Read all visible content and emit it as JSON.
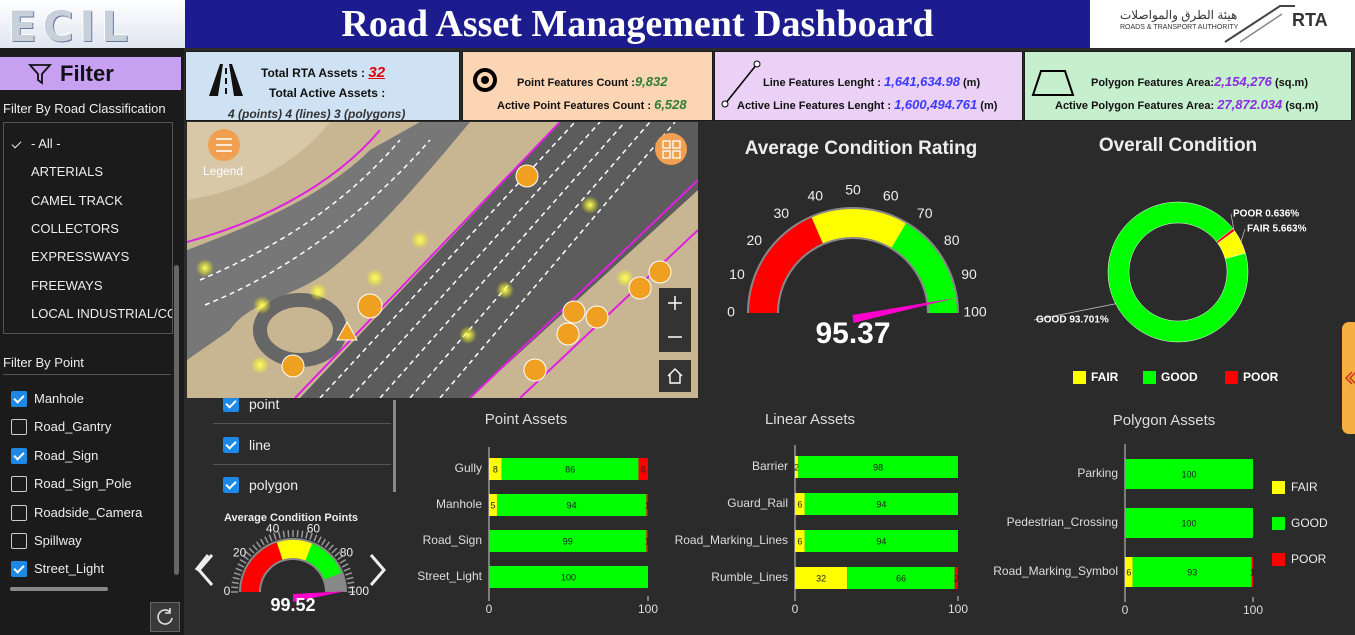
{
  "header": {
    "logo": "ECIL",
    "title": "Road Asset Management Dashboard",
    "authority_arabic": "هيئة الطرق والمواصلات",
    "authority_english": "ROADS & TRANSPORT AUTHORITY",
    "authority_short": "RTA"
  },
  "kpis": [
    {
      "label": "Total RTA Assets :",
      "value": "32",
      "label_2": "Total Active Assets :",
      "value_2": "4 (points) 4 (lines) 3 (polygons)"
    },
    {
      "label": "Point Features Count :",
      "value": "9,832",
      "label_2": "Active Point Features Count :",
      "value_2": "6,528"
    },
    {
      "label": "Line Features Lenght :",
      "value": "1,641,634.98",
      "unit": "(m)",
      "label_2": "Active Line Features Lenght :",
      "value_2": "1,600,494.761",
      "unit_2": "(m)"
    },
    {
      "label": "Polygon Features Area:",
      "value": "2,154,276",
      "unit": "(sq.m)",
      "label_2": "Active Polygon Features Area:",
      "value_2": "27,872.034",
      "unit_2": "(sq.m)"
    }
  ],
  "filter": {
    "title": "Filter",
    "road_label": "Filter By Road Classification",
    "road_options": [
      "- All -",
      "ARTERIALS",
      "CAMEL TRACK",
      "COLLECTORS",
      "EXPRESSWAYS",
      "FREEWAYS",
      "LOCAL INDUSTRIAL/CO"
    ],
    "selected_road": 0,
    "point_label": "Filter By Point",
    "point_options": [
      {
        "name": "Manhole",
        "checked": true
      },
      {
        "name": "Road_Gantry",
        "checked": false
      },
      {
        "name": "Road_Sign",
        "checked": true
      },
      {
        "name": "Road_Sign_Pole",
        "checked": false
      },
      {
        "name": "Roadside_Camera",
        "checked": false
      },
      {
        "name": "Spillway",
        "checked": false
      },
      {
        "name": "Street_Light",
        "checked": true
      }
    ]
  },
  "map": {
    "legend": "Legend",
    "layers": [
      {
        "name": "point",
        "checked": true
      },
      {
        "name": "line",
        "checked": true
      },
      {
        "name": "polygon",
        "checked": true
      }
    ]
  },
  "chart_data": [
    {
      "type": "gauge",
      "title": "Average Condition Rating",
      "value": 95.37,
      "ylim": [
        0,
        100
      ],
      "yticks": [
        0,
        10,
        20,
        30,
        40,
        50,
        60,
        70,
        80,
        90,
        100
      ],
      "bands": [
        {
          "from": 0,
          "to": 37,
          "color": "#ff0000"
        },
        {
          "from": 37,
          "to": 67,
          "color": "#ffff00"
        },
        {
          "from": 67,
          "to": 100,
          "color": "#00ff00"
        }
      ],
      "needle_color": "#ff00cc"
    },
    {
      "type": "pie",
      "title": "Overall Condition",
      "categories": [
        "FAIR",
        "GOOD",
        "POOR"
      ],
      "values": [
        5.663,
        93.701,
        0.636
      ],
      "value_labels": [
        "FAIR 5.663%",
        "GOOD 93.701%",
        "POOR 0.636%"
      ],
      "colors": [
        "#ffff00",
        "#00ff00",
        "#ff0000"
      ]
    },
    {
      "type": "gauge",
      "title": "Average Condition Points",
      "value": 99.52,
      "ylim": [
        0,
        100
      ],
      "yticks": [
        0,
        20,
        40,
        60,
        80,
        100
      ],
      "bands": [
        {
          "from": 0,
          "to": 40,
          "color": "#ff0000"
        },
        {
          "from": 40,
          "to": 62,
          "color": "#ffff00"
        },
        {
          "from": 62,
          "to": 88,
          "color": "#00ff00"
        }
      ],
      "needle_color": "#ff00cc"
    },
    {
      "type": "bar",
      "title": "Point Assets",
      "categories": [
        "Gully",
        "Manhole",
        "Road_Sign",
        "Street_Light"
      ],
      "series": [
        {
          "color": "#ffff00",
          "values": [
            8,
            5,
            0,
            0
          ]
        },
        {
          "color": "#00ff00",
          "values": [
            86,
            94,
            99,
            100
          ]
        },
        {
          "color": "#ff0000",
          "values": [
            6,
            1,
            1,
            0
          ]
        }
      ],
      "xlim": [
        0,
        100
      ],
      "xticks": [
        0,
        100
      ]
    },
    {
      "type": "bar",
      "title": "Linear Assets",
      "categories": [
        "Barrier",
        "Guard_Rail",
        "Road_Marking_Lines",
        "Rumble_Lines"
      ],
      "series": [
        {
          "color": "#ffff00",
          "values": [
            2,
            6,
            6,
            32
          ]
        },
        {
          "color": "#00ff00",
          "values": [
            98,
            94,
            94,
            66
          ]
        },
        {
          "color": "#ff0000",
          "values": [
            0,
            0,
            0,
            2
          ]
        }
      ],
      "xlim": [
        0,
        100
      ],
      "xticks": [
        0,
        100
      ]
    },
    {
      "type": "bar",
      "title": "Polygon Assets",
      "categories": [
        "Parking",
        "Pedestrian_Crossing",
        "Road_Marking_Symbol"
      ],
      "series": [
        {
          "name": "FAIR",
          "color": "#ffff00",
          "values": [
            0,
            0,
            6
          ]
        },
        {
          "name": "GOOD",
          "color": "#00ff00",
          "values": [
            100,
            100,
            93
          ]
        },
        {
          "name": "POOR",
          "color": "#ff0000",
          "values": [
            0,
            0,
            1
          ]
        }
      ],
      "xlim": [
        0,
        100
      ],
      "xticks": [
        0,
        100
      ],
      "legend": "right"
    }
  ]
}
